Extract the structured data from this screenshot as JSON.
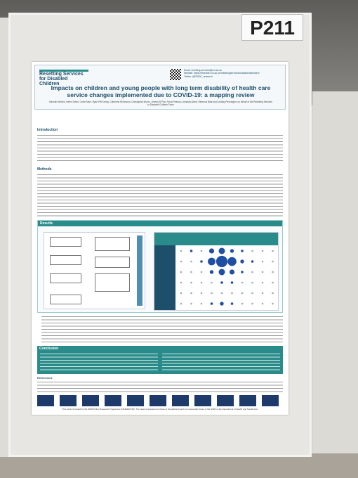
{
  "sign": "P211",
  "poster": {
    "logo": "Resetting Services for Disabled Children",
    "contact": [
      "Email: resetting-services@ncl.ac.uk",
      "Website: https://research.ncl.ac.uk/resettingservicesfordisabledchildren/",
      "Twitter: @RSfDC_research"
    ],
    "title": "Impacts on children and young people with long term disability of health care service changes implemented due to COVID-19: a mapping review",
    "authors": "Hannah Merrick, Helen Driver, Chloe Main, Ryan PW Kenny, Catherine Richmond, Christopher Munro, Jeremy R Parr, Fiona Pearson, Amanda Allard, Rebecca Bate and Lindsay Pennington on behalf of the Resetting Services to Disabled Children Team",
    "sections": [
      "Introduction",
      "Methods",
      "Results",
      "Conclusion",
      "References"
    ],
    "footer": "This study is funded by the NIHR Policy Research Programme (NIHR202735). The views expressed are those of the author(s) and not necessarily those of the NIHR or the Department of Health and Social Care"
  }
}
